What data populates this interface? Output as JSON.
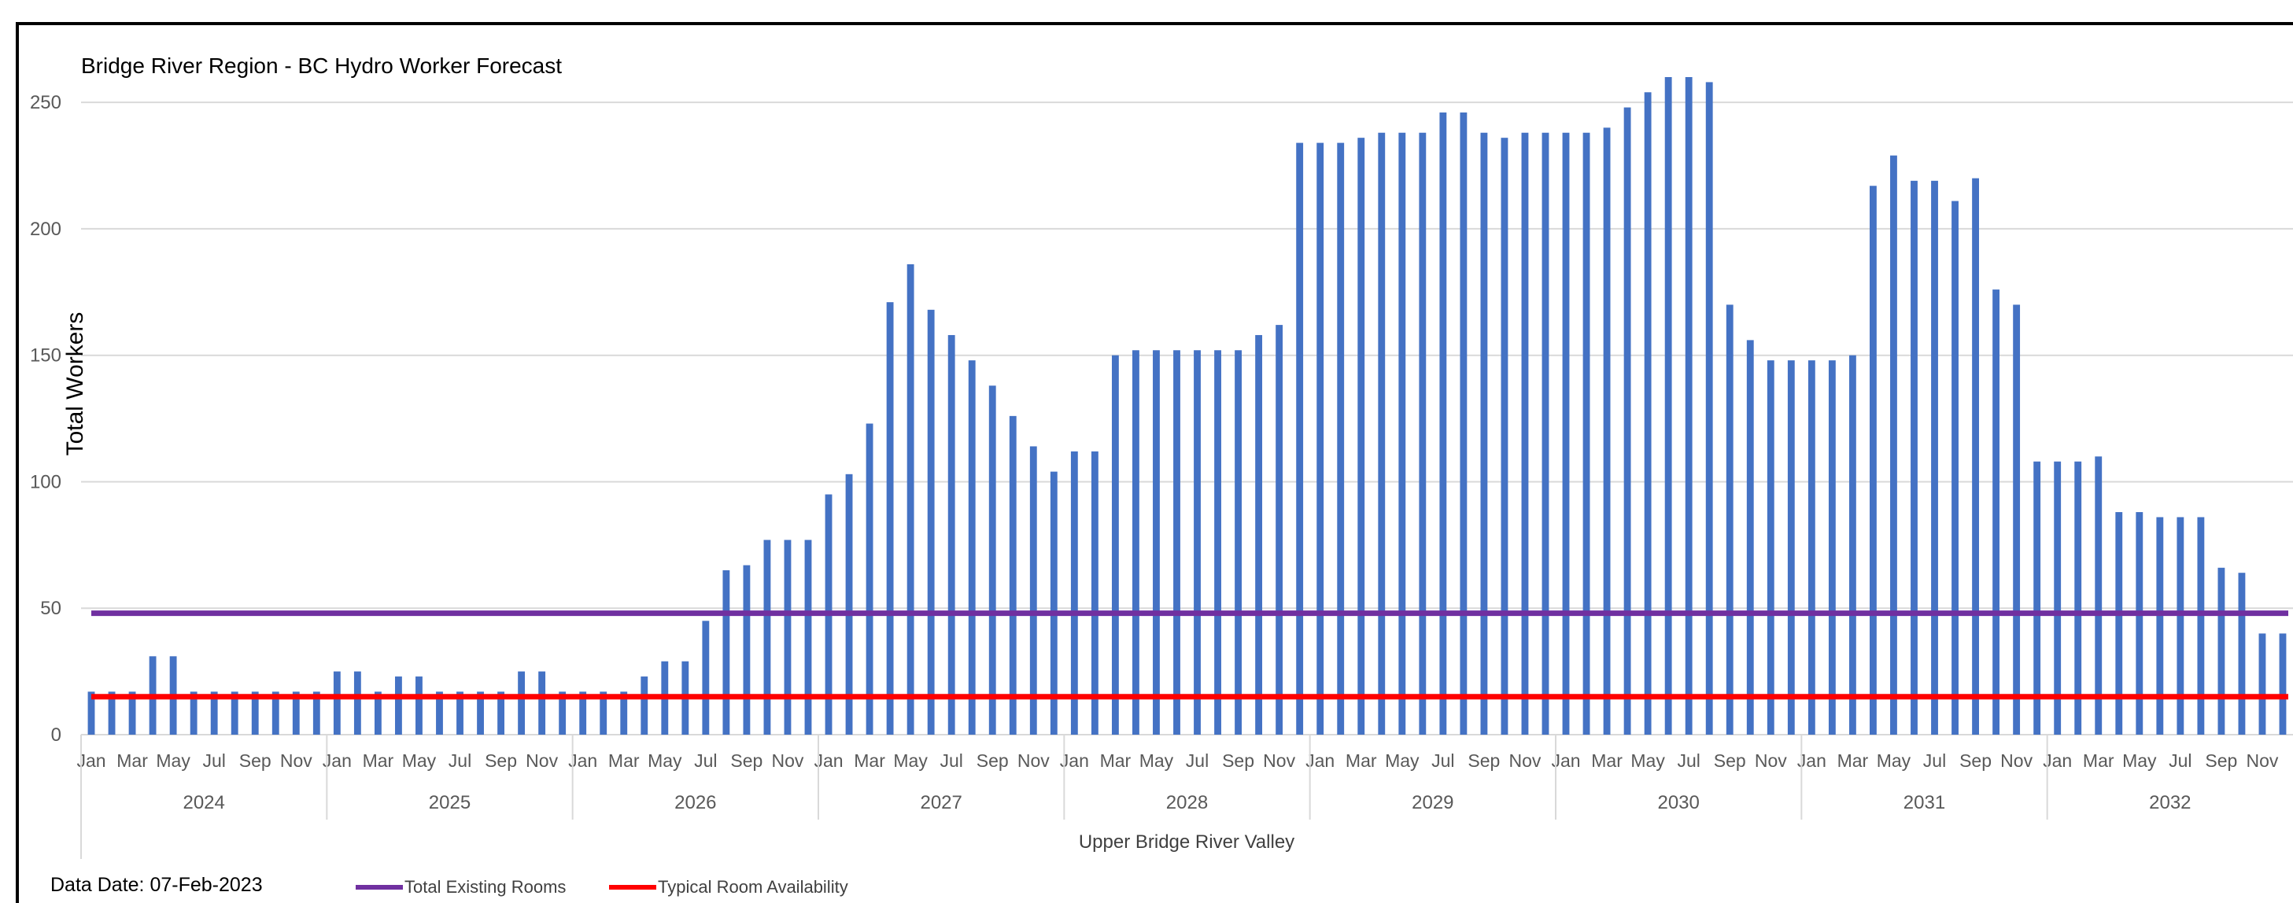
{
  "chart_data": {
    "type": "bar",
    "title": "Bridge River Region - BC Hydro Worker Forecast",
    "ylabel": "Total Workers",
    "xlabel": "Upper Bridge River Valley",
    "ylim": [
      0,
      260
    ],
    "yticks": [
      0,
      50,
      100,
      150,
      200,
      250
    ],
    "grid": true,
    "legend_placement": "bottom",
    "years": [
      "2024",
      "2025",
      "2026",
      "2027",
      "2028",
      "2029",
      "2030",
      "2031",
      "2032"
    ],
    "month_labels": [
      "Jan",
      "",
      "Mar",
      "",
      "May",
      "",
      "Jul",
      "",
      "Sep",
      "",
      "Nov",
      ""
    ],
    "bar_color": "#4472c4",
    "series": [
      {
        "values": [
          17,
          17,
          17,
          31,
          31,
          17,
          17,
          17,
          17,
          17,
          17,
          17,
          25,
          25,
          17,
          23,
          23,
          17,
          17,
          17,
          17,
          25,
          25,
          17,
          17,
          17,
          17,
          23,
          29,
          29,
          45,
          65,
          67,
          77,
          77,
          77,
          95,
          103,
          123,
          171,
          186,
          168,
          158,
          148,
          138,
          126,
          114,
          104,
          112,
          112,
          150,
          152,
          152,
          152,
          152,
          152,
          152,
          158,
          162,
          234,
          234,
          234,
          236,
          238,
          238,
          238,
          246,
          246,
          238,
          236,
          238,
          238,
          238,
          238,
          240,
          248,
          254,
          260,
          260,
          258,
          170,
          156,
          148,
          148,
          148,
          148,
          150,
          217,
          229,
          219,
          219,
          211,
          220,
          176,
          170,
          108,
          108,
          108,
          110,
          88,
          88,
          86,
          86,
          86,
          66,
          64,
          40,
          40
        ]
      }
    ],
    "reference_lines": [
      {
        "name": "Total Existing Rooms",
        "value": 48,
        "color": "#7030a0"
      },
      {
        "name": "Typical Room Availability",
        "value": 15,
        "color": "#ff0000"
      }
    ]
  },
  "footer": {
    "data_date": "Data Date: 07-Feb-2023",
    "legend": [
      {
        "label": "Total Existing Rooms",
        "color": "#7030a0"
      },
      {
        "label": "Typical Room Availability",
        "color": "#ff0000"
      }
    ]
  }
}
